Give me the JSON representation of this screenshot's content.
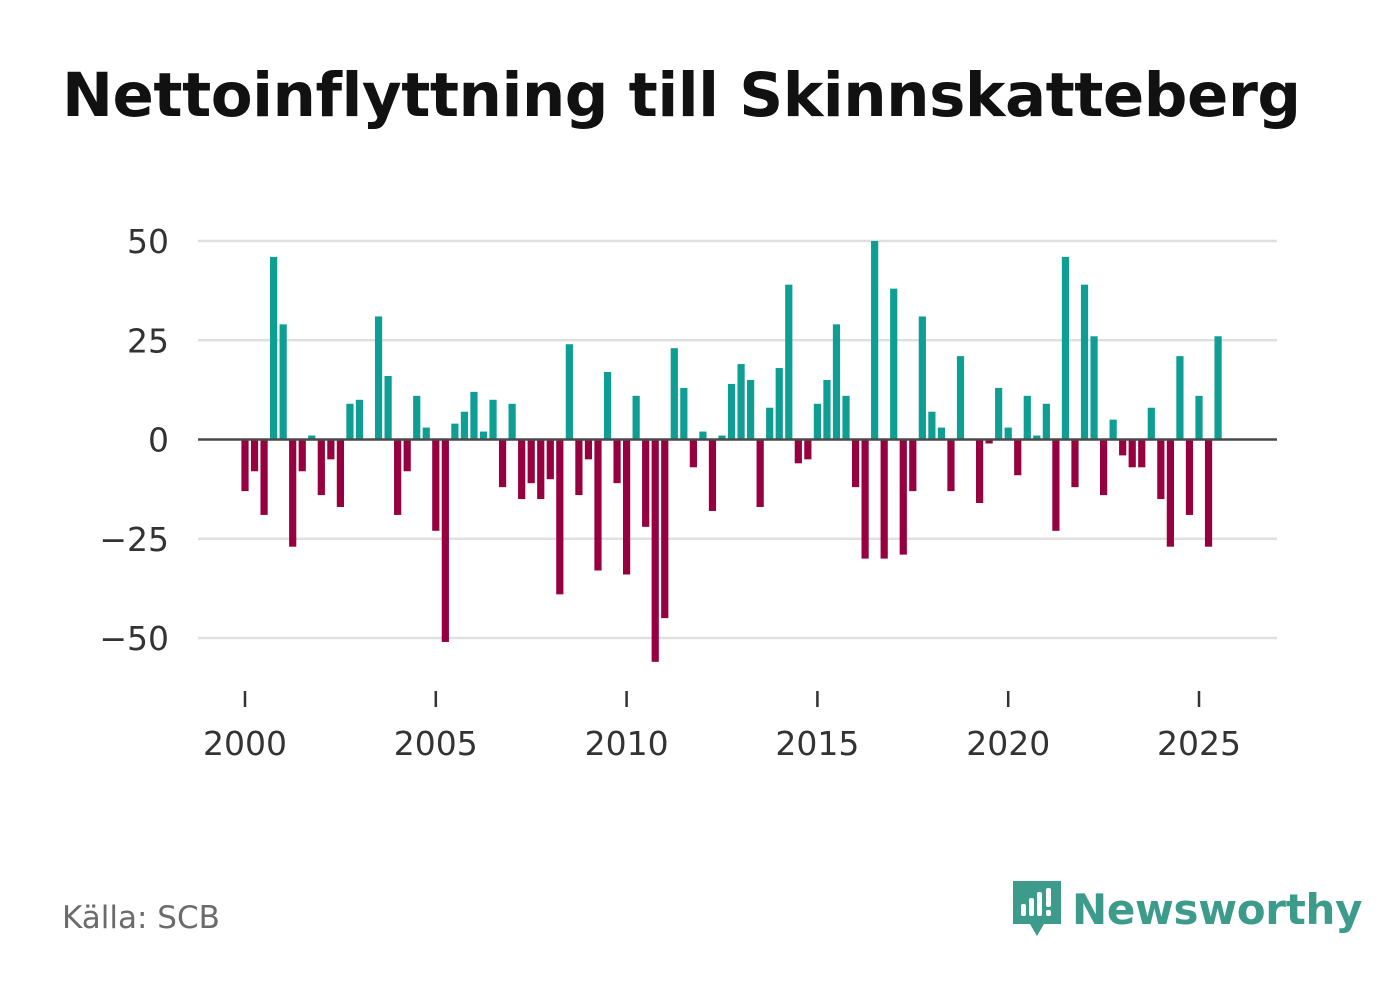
{
  "title": "Nettoinflyttning till Skinnskatteberg",
  "source": "Källa: SCB",
  "brand": {
    "name": "Newsworthy",
    "icon": "newsworthy-logo-icon",
    "color": "#3d9b8c"
  },
  "colors": {
    "positive": "#0e9e94",
    "negative": "#96003f",
    "grid": "#e0e0e0",
    "zero": "#4a4a4a"
  },
  "chart_data": {
    "type": "bar",
    "title": "Nettoinflyttning till Skinnskatteberg",
    "xlabel": "",
    "ylabel": "",
    "ylim": [
      -56,
      50
    ],
    "xlim": [
      1999.2,
      2026.9
    ],
    "yticks": [
      50,
      25,
      0,
      -25,
      -50
    ],
    "ytick_labels": [
      "50",
      "25",
      "0",
      "−25",
      "−50"
    ],
    "xticks": [
      2000,
      2005,
      2010,
      2015,
      2020,
      2025
    ],
    "xtick_labels": [
      "2000",
      "2005",
      "2010",
      "2015",
      "2020",
      "2025"
    ],
    "grid": true,
    "period": "quarterly",
    "series": [
      {
        "name": "Nettoinflyttning",
        "x": [
          2000.0,
          2000.25,
          2000.5,
          2000.75,
          2001.0,
          2001.25,
          2001.5,
          2001.75,
          2002.0,
          2002.25,
          2002.5,
          2002.75,
          2003.0,
          2003.25,
          2003.5,
          2003.75,
          2004.0,
          2004.25,
          2004.5,
          2004.75,
          2005.0,
          2005.25,
          2005.5,
          2005.75,
          2006.0,
          2006.25,
          2006.5,
          2006.75,
          2007.0,
          2007.25,
          2007.5,
          2007.75,
          2008.0,
          2008.25,
          2008.5,
          2008.75,
          2009.0,
          2009.25,
          2009.5,
          2009.75,
          2010.0,
          2010.25,
          2010.5,
          2010.75,
          2011.0,
          2011.25,
          2011.5,
          2011.75,
          2012.0,
          2012.25,
          2012.5,
          2012.75,
          2013.0,
          2013.25,
          2013.5,
          2013.75,
          2014.0,
          2014.25,
          2014.5,
          2014.75,
          2015.0,
          2015.25,
          2015.5,
          2015.75,
          2016.0,
          2016.25,
          2016.5,
          2016.75,
          2017.0,
          2017.25,
          2017.5,
          2017.75,
          2018.0,
          2018.25,
          2018.5,
          2018.75,
          2019.0,
          2019.25,
          2019.5,
          2019.75,
          2020.0,
          2020.25,
          2020.5,
          2020.75,
          2021.0,
          2021.25,
          2021.5,
          2021.75,
          2022.0,
          2022.25,
          2022.5,
          2022.75,
          2023.0,
          2023.25,
          2023.5,
          2023.75,
          2024.0,
          2024.25,
          2024.5,
          2024.75,
          2025.0,
          2025.25,
          2025.5
        ],
        "values": [
          -13,
          -8,
          -19,
          46,
          29,
          -27,
          -8,
          1,
          -14,
          -5,
          -17,
          9,
          10,
          0,
          31,
          16,
          -19,
          -8,
          11,
          3,
          -23,
          -51,
          4,
          7,
          12,
          2,
          10,
          -12,
          9,
          -15,
          -11,
          -15,
          -10,
          -39,
          24,
          -14,
          -5,
          -33,
          17,
          -11,
          -34,
          11,
          -22,
          -56,
          -45,
          23,
          13,
          -7,
          2,
          -18,
          1,
          14,
          19,
          15,
          -17,
          8,
          18,
          39,
          -6,
          -5,
          9,
          15,
          29,
          11,
          -12,
          -30,
          50,
          -30,
          38,
          -29,
          -13,
          31,
          7,
          3,
          -13,
          21,
          0,
          -16,
          -1,
          13,
          3,
          -9,
          11,
          1,
          9,
          -23,
          46,
          -12,
          39,
          26,
          -14,
          5,
          -4,
          -7,
          -7,
          8,
          -15,
          -27,
          21,
          -19,
          11,
          -27,
          26
        ]
      }
    ]
  }
}
